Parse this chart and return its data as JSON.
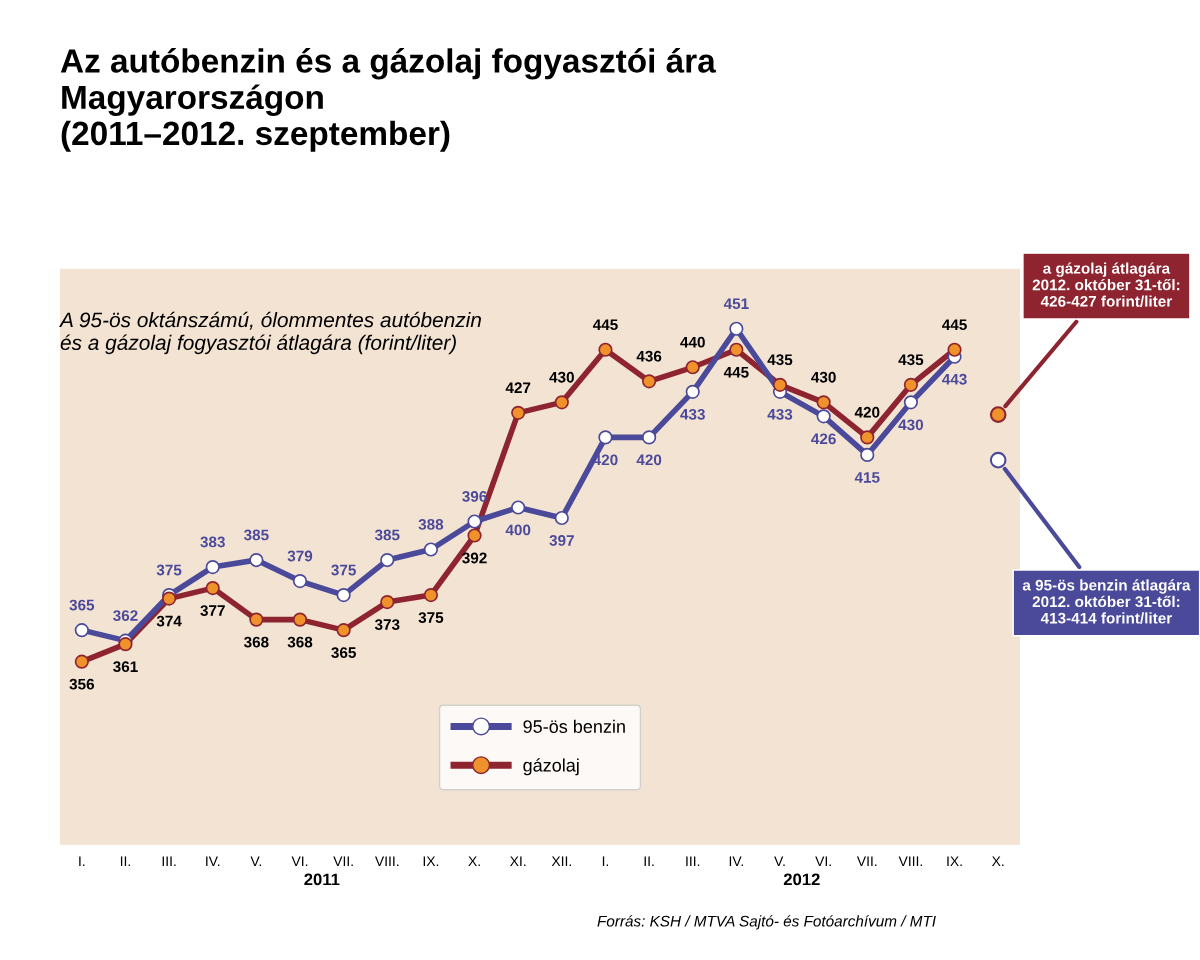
{
  "chart_data": {
    "type": "line",
    "title": "Az autóbenzin és a gázolaj fogyasztói ára\nMagyarországon\n(2011–2012. szeptember)",
    "subtitle": "A 95-ös oktánszámú, ólommentes autóbenzin\nés a gázolaj fogyasztói átlagára (forint/liter)",
    "categories": [
      "I.",
      "II.",
      "III.",
      "IV.",
      "V.",
      "VI.",
      "VII.",
      "VIII.",
      "IX.",
      "X.",
      "XI.",
      "XII.",
      "I.",
      "II.",
      "III.",
      "IV.",
      "V.",
      "VI.",
      "VII.",
      "VIII.",
      "IX.",
      "X."
    ],
    "series": [
      {
        "name": "95-ös benzin",
        "color": "#4b4a9a",
        "values": [
          365,
          362,
          375,
          383,
          385,
          379,
          375,
          385,
          388,
          396,
          400,
          397,
          420,
          420,
          433,
          451,
          433,
          426,
          415,
          430,
          443,
          null
        ]
      },
      {
        "name": "gázolaj",
        "color": "#8e2430",
        "values": [
          356,
          361,
          374,
          377,
          368,
          368,
          365,
          373,
          375,
          392,
          427,
          430,
          445,
          436,
          440,
          445,
          435,
          430,
          420,
          435,
          445,
          null
        ]
      },
      {
        "type": "scatter",
        "color": "#8e2430",
        "values": [
          null,
          null,
          null,
          null,
          null,
          null,
          null,
          null,
          null,
          null,
          null,
          null,
          null,
          null,
          null,
          null,
          null,
          null,
          null,
          null,
          null,
          426.5
        ],
        "value_labels": [
          null,
          null,
          null,
          null,
          null,
          null,
          null,
          null,
          null,
          null,
          null,
          null,
          null,
          null,
          null,
          null,
          null,
          null,
          null,
          null,
          null,
          null
        ]
      },
      {
        "type": "scatter",
        "color": "#4b4a9a",
        "values": [
          null,
          null,
          null,
          null,
          null,
          null,
          null,
          null,
          null,
          null,
          null,
          null,
          null,
          null,
          null,
          null,
          null,
          null,
          null,
          null,
          null,
          413.5
        ],
        "value_labels": [
          null,
          null,
          null,
          null,
          null,
          null,
          null,
          null,
          null,
          null,
          null,
          null,
          null,
          null,
          null,
          null,
          null,
          null,
          null,
          null,
          null,
          null
        ]
      }
    ],
    "marker": "circle",
    "data_labels": true,
    "legend": "bottom",
    "grid": false,
    "annotations": [
      "a gázolaj átlagára\n2012. október 31-től:\n426-427 forint/liter",
      "a 95-ös benzin átlagára\n2012. október 31-től:\n413-414 forint/liter",
      "2011",
      "2012",
      "Forrás: KSH / MTVA Sajtó- és Fotóarchívum / MTI"
    ]
  }
}
